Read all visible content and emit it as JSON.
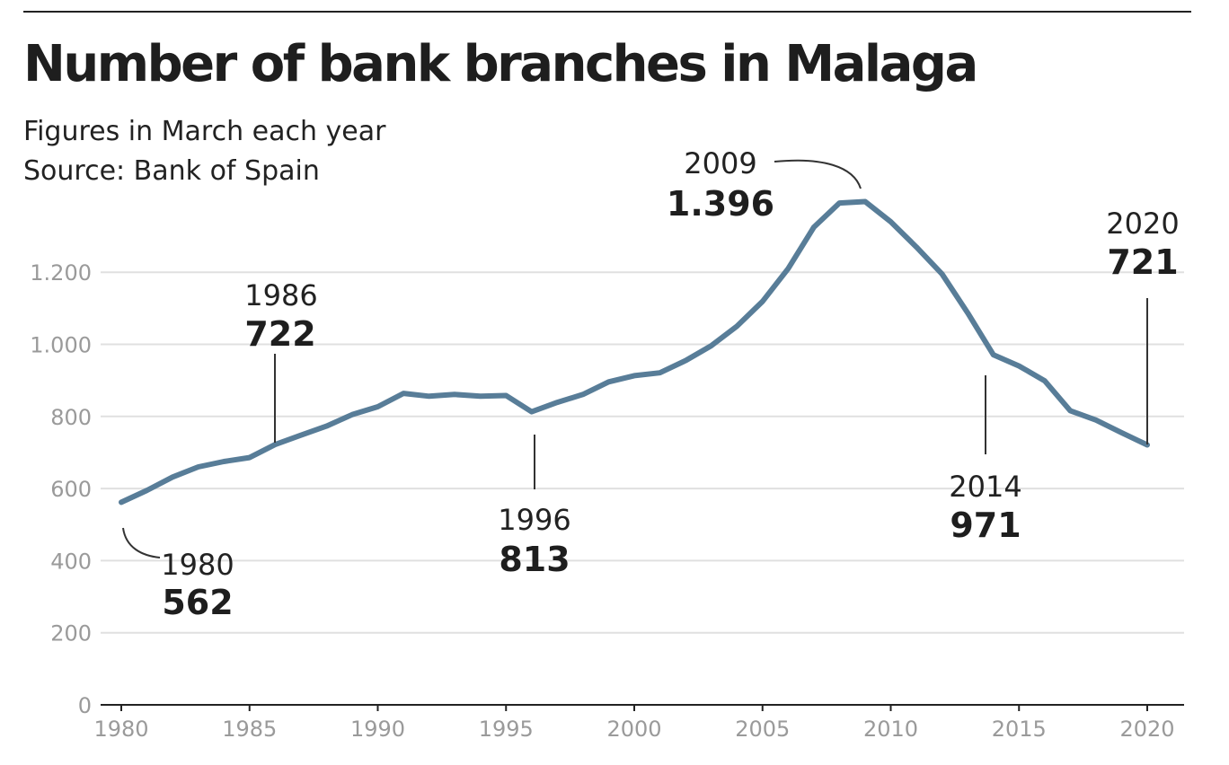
{
  "header": {
    "title": "Number of bank branches in Malaga",
    "subtitle_line1": "Figures in March each year",
    "subtitle_line2": "Source: Bank of Spain"
  },
  "colors": {
    "line": "#587d98",
    "grid": "#e0e0e0",
    "axis": "#222222",
    "tick_text": "#9a9a9a"
  },
  "chart_data": {
    "type": "line",
    "title": "Number of bank branches in Malaga",
    "subtitle": "Figures in March each year",
    "source": "Source: Bank of Spain",
    "xlabel": "",
    "ylabel": "",
    "xlim": [
      1980,
      2020
    ],
    "ylim": [
      0,
      1400
    ],
    "grid": true,
    "x_ticks": [
      1980,
      1985,
      1990,
      1995,
      2000,
      2005,
      2010,
      2015,
      2020
    ],
    "y_ticks": [
      {
        "value": 0,
        "label": "0"
      },
      {
        "value": 200,
        "label": "200"
      },
      {
        "value": 400,
        "label": "400"
      },
      {
        "value": 600,
        "label": "600"
      },
      {
        "value": 800,
        "label": "800"
      },
      {
        "value": 1000,
        "label": "1.000"
      },
      {
        "value": 1200,
        "label": "1.200"
      }
    ],
    "x": [
      1980,
      1981,
      1982,
      1983,
      1984,
      1985,
      1986,
      1987,
      1988,
      1989,
      1990,
      1991,
      1992,
      1993,
      1994,
      1995,
      1996,
      1997,
      1998,
      1999,
      2000,
      2001,
      2002,
      2003,
      2004,
      2005,
      2006,
      2007,
      2008,
      2009,
      2010,
      2011,
      2012,
      2013,
      2014,
      2015,
      2016,
      2017,
      2018,
      2019,
      2020
    ],
    "series": [
      {
        "values": [
          562,
          595,
          632,
          660,
          675,
          686,
          722,
          748,
          773,
          805,
          827,
          864,
          856,
          861,
          856,
          858,
          813,
          839,
          861,
          896,
          913,
          921,
          955,
          996,
          1050,
          1119,
          1210,
          1325,
          1392,
          1396,
          1340,
          1270,
          1195,
          1087,
          971,
          940,
          899,
          816,
          790,
          755,
          721
        ]
      }
    ],
    "annotations": [
      {
        "year_label": "1980",
        "value_label": "562",
        "x": 1980,
        "y": 562
      },
      {
        "year_label": "1986",
        "value_label": "722",
        "x": 1986,
        "y": 722
      },
      {
        "year_label": "1996",
        "value_label": "813",
        "x": 1996,
        "y": 813
      },
      {
        "year_label": "2009",
        "value_label": "1.396",
        "x": 2009,
        "y": 1396
      },
      {
        "year_label": "2014",
        "value_label": "971",
        "x": 2014,
        "y": 971
      },
      {
        "year_label": "2020",
        "value_label": "721",
        "x": 2020,
        "y": 721
      }
    ]
  }
}
